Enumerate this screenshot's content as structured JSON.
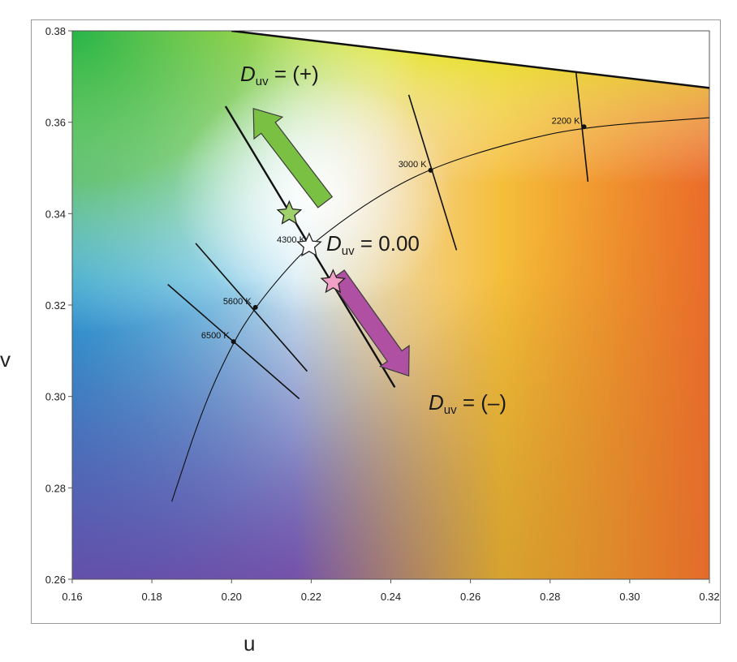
{
  "chart_data": {
    "type": "scatter",
    "title": "",
    "xlabel": "u",
    "ylabel": "v",
    "xlim": [
      0.16,
      0.32
    ],
    "ylim": [
      0.26,
      0.38
    ],
    "xticks": [
      "0.16",
      "0.18",
      "0.20",
      "0.22",
      "0.24",
      "0.26",
      "0.28",
      "0.30",
      "0.32"
    ],
    "yticks": [
      "0.26",
      "0.28",
      "0.30",
      "0.32",
      "0.34",
      "0.36",
      "0.38"
    ],
    "grid": false,
    "planckian_locus": [
      {
        "u": 0.185,
        "v": 0.277
      },
      {
        "u": 0.193,
        "v": 0.298
      },
      {
        "u": 0.2005,
        "v": 0.312
      },
      {
        "u": 0.206,
        "v": 0.3195
      },
      {
        "u": 0.213,
        "v": 0.327
      },
      {
        "u": 0.2195,
        "v": 0.333
      },
      {
        "u": 0.235,
        "v": 0.343
      },
      {
        "u": 0.25,
        "v": 0.35
      },
      {
        "u": 0.27,
        "v": 0.3555
      },
      {
        "u": 0.2885,
        "v": 0.359
      },
      {
        "u": 0.32,
        "v": 0.361
      }
    ],
    "isotherms": [
      {
        "label": "6500 K",
        "point": {
          "u": 0.2005,
          "v": 0.312
        },
        "from": {
          "u": 0.184,
          "v": 0.3245
        },
        "to": {
          "u": 0.217,
          "v": 0.2995
        }
      },
      {
        "label": "5600 K",
        "point": {
          "u": 0.206,
          "v": 0.3195
        },
        "from": {
          "u": 0.191,
          "v": 0.3335
        },
        "to": {
          "u": 0.219,
          "v": 0.3055
        }
      },
      {
        "label": "4300 K",
        "point": {
          "u": 0.2195,
          "v": 0.333
        },
        "from": {
          "u": 0.1985,
          "v": 0.3635
        },
        "to": {
          "u": 0.241,
          "v": 0.302
        }
      },
      {
        "label": "3000 K",
        "point": {
          "u": 0.25,
          "v": 0.3495
        },
        "from": {
          "u": 0.2445,
          "v": 0.366
        },
        "to": {
          "u": 0.2565,
          "v": 0.332
        }
      },
      {
        "label": "2200 K",
        "point": {
          "u": 0.2885,
          "v": 0.359
        },
        "from": {
          "u": 0.2865,
          "v": 0.371
        },
        "to": {
          "u": 0.2895,
          "v": 0.347
        }
      }
    ],
    "markers": [
      {
        "name": "Duv positive",
        "u": 0.2145,
        "v": 0.34,
        "color": "#9fd06c"
      },
      {
        "name": "Duv zero",
        "u": 0.2195,
        "v": 0.333,
        "color": "#ffffff"
      },
      {
        "name": "Duv negative",
        "u": 0.2255,
        "v": 0.325,
        "color": "#f2a0c6"
      }
    ],
    "annotations": {
      "duv_plus": {
        "D": "D",
        "sub": "uv",
        "rest": " = (+)"
      },
      "duv_zero": {
        "D": "D",
        "sub": "uv",
        "rest": " = 0.00"
      },
      "duv_minus": {
        "D": "D",
        "sub": "uv",
        "rest": " = (–)"
      }
    },
    "arrows": [
      {
        "name": "toward positive Duv",
        "color": "#7ac143",
        "from": {
          "u": 0.2235,
          "v": 0.3425
        },
        "to": {
          "u": 0.2055,
          "v": 0.363
        }
      },
      {
        "name": "toward negative Duv",
        "color": "#b050a2",
        "from": {
          "u": 0.2265,
          "v": 0.3265
        },
        "to": {
          "u": 0.2445,
          "v": 0.3045
        }
      }
    ],
    "spectrum_locus_edge": [
      {
        "u": 0.16,
        "v": 0.38
      },
      {
        "u": 0.2,
        "v": 0.38
      },
      {
        "u": 0.32,
        "v": 0.3675
      }
    ]
  }
}
